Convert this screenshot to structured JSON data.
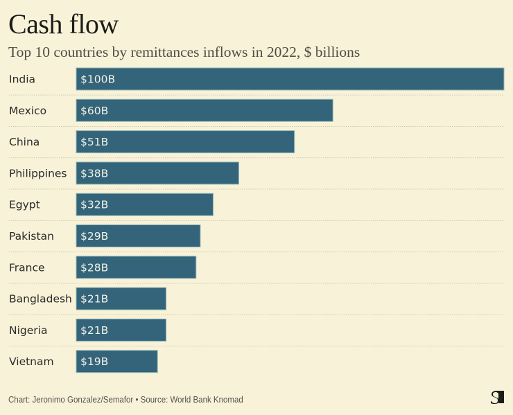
{
  "header": {
    "title": "Cash flow",
    "subtitle": "Top 10 countries by remittances inflows in 2022, $ billions"
  },
  "chart_data": {
    "type": "bar",
    "orientation": "horizontal",
    "title": "Cash flow",
    "subtitle": "Top 10 countries by remittances inflows in 2022, $ billions",
    "xlabel": "",
    "ylabel": "",
    "unit": "$ billions",
    "xlim": [
      0,
      100
    ],
    "grid": false,
    "legend": "none",
    "categories": [
      "India",
      "Mexico",
      "China",
      "Philippines",
      "Egypt",
      "Pakistan",
      "France",
      "Bangladesh",
      "Nigeria",
      "Vietnam"
    ],
    "values": [
      100,
      60,
      51,
      38,
      32,
      29,
      28,
      21,
      21,
      19
    ],
    "value_labels": [
      "$100B",
      "$60B",
      "$51B",
      "$38B",
      "$32B",
      "$29B",
      "$28B",
      "$21B",
      "$21B",
      "$19B"
    ],
    "bar_color": "#33647a",
    "separator_style": "dotted"
  },
  "footer": {
    "credit": "Chart: Jeronimo Gonzalez/Semafor • Source: World Bank Knomad",
    "logo": "semafor-logo-icon"
  },
  "colors": {
    "background": "#f8f2d8",
    "bar": "#33647a",
    "bar_border": "#8fb6b6",
    "label_text": "#2a2a28",
    "value_text": "#f2f0e4",
    "separator": "#cfcab2"
  }
}
